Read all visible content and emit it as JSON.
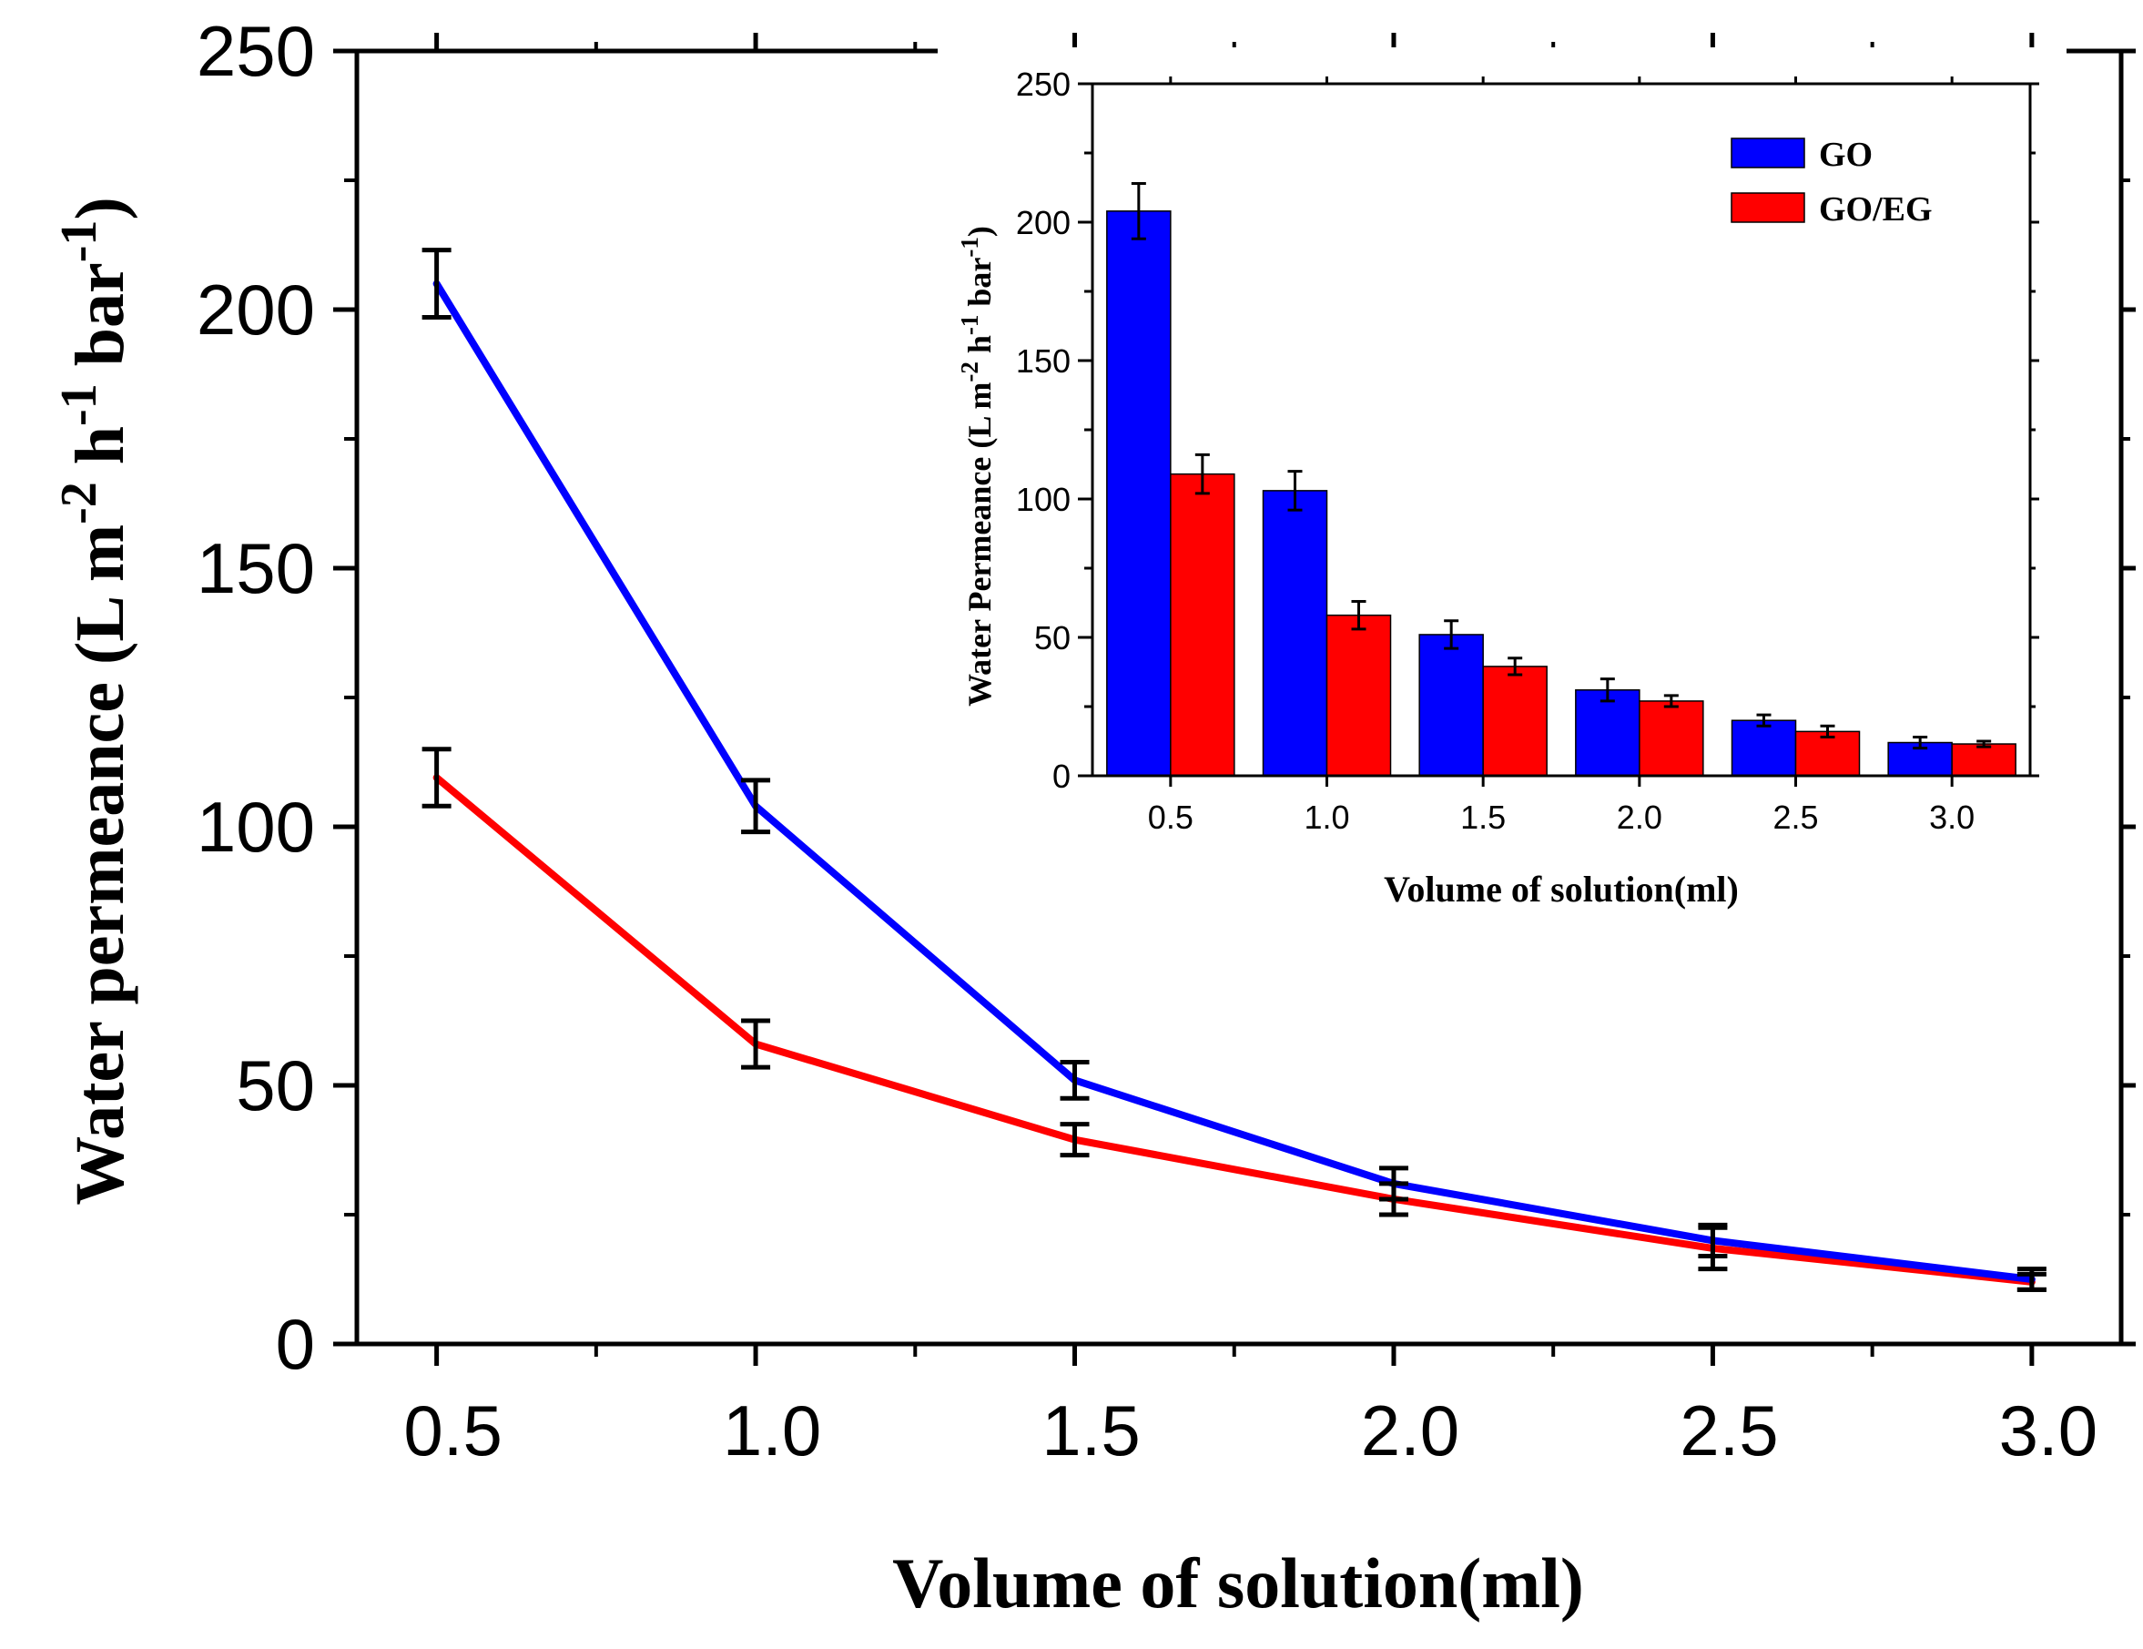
{
  "chart_data": [
    {
      "id": "main",
      "type": "line",
      "xlabel": "Volume of solution(ml)",
      "ylabel": {
        "base": "Water permeance (L m",
        "sup1": "-2",
        "mid1": " h",
        "sup2": "-1",
        "mid2": " bar",
        "sup3": "-1",
        "end": ")"
      },
      "xlim": [
        0.375,
        3.14
      ],
      "ylim": [
        0,
        250
      ],
      "x": [
        0.5,
        1.0,
        1.5,
        2.0,
        2.5,
        3.0
      ],
      "xticks": [
        0.5,
        1.0,
        1.5,
        2.0,
        2.5,
        3.0
      ],
      "xtick_labels": [
        "0.5",
        "1.0",
        "1.5",
        "2.0",
        "2.5",
        "3.0"
      ],
      "yticks": [
        0,
        50,
        100,
        150,
        200,
        250
      ],
      "ytick_labels": [
        "0",
        "50",
        "100",
        "150",
        "200",
        "250"
      ],
      "series": [
        {
          "name": "GO",
          "color": "#0000ff",
          "values": [
            205,
            104,
            51,
            31,
            20,
            12.5
          ],
          "errors": [
            6.5,
            5,
            3.5,
            3,
            3,
            2
          ]
        },
        {
          "name": "GO/EG",
          "color": "#ff0000",
          "values": [
            109.5,
            58,
            39.5,
            28,
            18.5,
            12
          ],
          "errors": [
            5.5,
            4.5,
            3,
            3,
            4,
            1.5
          ]
        }
      ]
    },
    {
      "id": "inset",
      "type": "bar",
      "xlabel": "Volume of solution(ml)",
      "ylabel": {
        "base": "Water Permeance (L m",
        "sup1": "-2",
        "mid1": " h",
        "sup2": "-1",
        "mid2": " bar",
        "sup3": "-1",
        "end": ")"
      },
      "ylim": [
        0,
        250
      ],
      "categories": [
        "0.5",
        "1.0",
        "1.5",
        "2.0",
        "2.5",
        "3.0"
      ],
      "yticks": [
        0,
        50,
        100,
        150,
        200,
        250
      ],
      "ytick_labels": [
        "0",
        "50",
        "100",
        "150",
        "200",
        "250"
      ],
      "legend": "top-right",
      "series": [
        {
          "name": "GO",
          "color": "#0000ff",
          "values": [
            204,
            103,
            51,
            31,
            20,
            12
          ],
          "errors": [
            10,
            7,
            5,
            4,
            2,
            2
          ]
        },
        {
          "name": "GO/EG",
          "color": "#ff0000",
          "values": [
            109,
            58,
            39.5,
            27,
            16,
            11.5
          ],
          "errors": [
            7,
            5,
            3,
            2,
            2,
            1
          ]
        }
      ]
    }
  ]
}
